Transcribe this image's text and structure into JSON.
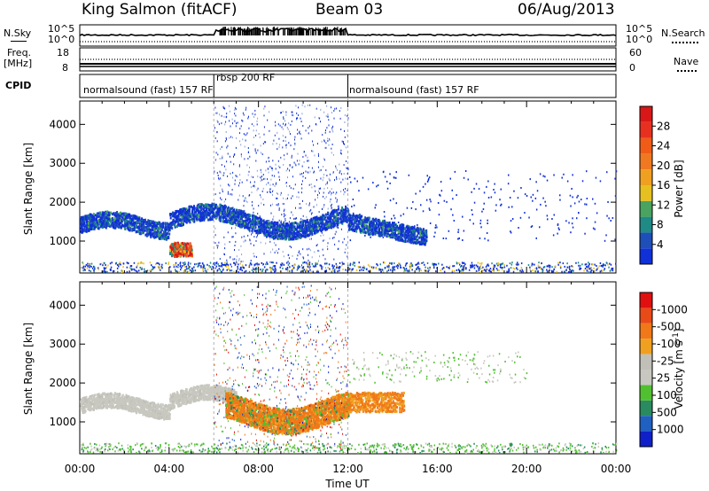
{
  "header": {
    "station": "King Salmon (fitACF)",
    "beam": "Beam 03",
    "date": "06/Aug/2013"
  },
  "top_panels": {
    "nsky_label": "N.Sky",
    "nsky_ticks": [
      "10^5",
      "10^0"
    ],
    "nsearch_label": "N.Search",
    "nsearch_ticks": [
      "10^5",
      "10^0"
    ],
    "freq_label": "Freq.",
    "freq_unit": "[MHz]",
    "freq_ticks": [
      "18",
      "8"
    ],
    "nave_label": "Nave",
    "nave_ticks": [
      "60",
      "0"
    ],
    "cpid_label": "CPID",
    "cpid_segments": [
      {
        "label": "normalsound (fast) 157 RF",
        "start_hour": 0,
        "end_hour": 6.0
      },
      {
        "label": "rbsp 200 RF",
        "start_hour": 6.0,
        "end_hour": 12.0
      },
      {
        "label": "normalsound (fast) 157 RF",
        "start_hour": 12.0,
        "end_hour": 24
      }
    ]
  },
  "axes": {
    "xlabel": "Time UT",
    "ylabel": "Slant Range [km]",
    "x_ticks": [
      "00:00",
      "04:00",
      "08:00",
      "12:00",
      "16:00",
      "20:00",
      "00:00"
    ],
    "x_tick_hours": [
      0,
      4,
      8,
      12,
      16,
      20,
      24
    ],
    "y_ticks": [
      "1000",
      "2000",
      "3000",
      "4000"
    ],
    "y_tick_values": [
      1000,
      2000,
      3000,
      4000
    ],
    "ylim": [
      180,
      4600
    ],
    "xlim": [
      0,
      24
    ]
  },
  "chart_data": [
    {
      "type": "heatmap",
      "title": "Power",
      "colorbar_label": "Power [dB]",
      "colorbar_ticks": [
        "4",
        "8",
        "12",
        "16",
        "20",
        "24",
        "28"
      ],
      "colorbar_colors": [
        "#1030d8",
        "#1e4fb8",
        "#1f8a86",
        "#4aa35e",
        "#e6c020",
        "#f0a020",
        "#f07820",
        "#f05c18",
        "#e83020",
        "#d81818"
      ],
      "xlim": [
        0,
        24
      ],
      "ylim": [
        180,
        4600
      ],
      "regions": [
        {
          "name": "main echo band",
          "hours": [
            0,
            12
          ],
          "range_km": [
            1300,
            1700
          ]
        },
        {
          "name": "echo band after 12 UT",
          "hours": [
            12,
            15.5
          ],
          "range_km": [
            1100,
            1900
          ]
        },
        {
          "name": "strong echo patch",
          "hours": [
            4,
            5
          ],
          "range_km": [
            500,
            1000
          ]
        }
      ]
    },
    {
      "type": "heatmap",
      "title": "Velocity",
      "colorbar_label": "Velocity [m s^-1]",
      "colorbar_ticks": [
        "1000",
        "500",
        "100",
        "25",
        "-25",
        "-100",
        "-500",
        "-1000"
      ],
      "colorbar_colors": [
        "#1020c8",
        "#2060c0",
        "#2a8a60",
        "#50c030",
        "#c8c8c0",
        "#c0c0b8",
        "#f0a020",
        "#f07818",
        "#e84a18",
        "#e01010"
      ],
      "xlim": [
        0,
        24
      ],
      "ylim": [
        180,
        4600
      ],
      "regions": [
        {
          "name": "ground scatter band",
          "hours": [
            0,
            7
          ],
          "range_km": [
            1300,
            1700
          ]
        },
        {
          "name": "negative velocity band",
          "hours": [
            6.5,
            12
          ],
          "range_km": [
            700,
            1800
          ]
        },
        {
          "name": "negative velocity band after 12 UT",
          "hours": [
            12,
            14.5
          ],
          "range_km": [
            1200,
            1800
          ]
        }
      ]
    }
  ],
  "colors": {
    "guide_line": "#b0b0b0"
  }
}
